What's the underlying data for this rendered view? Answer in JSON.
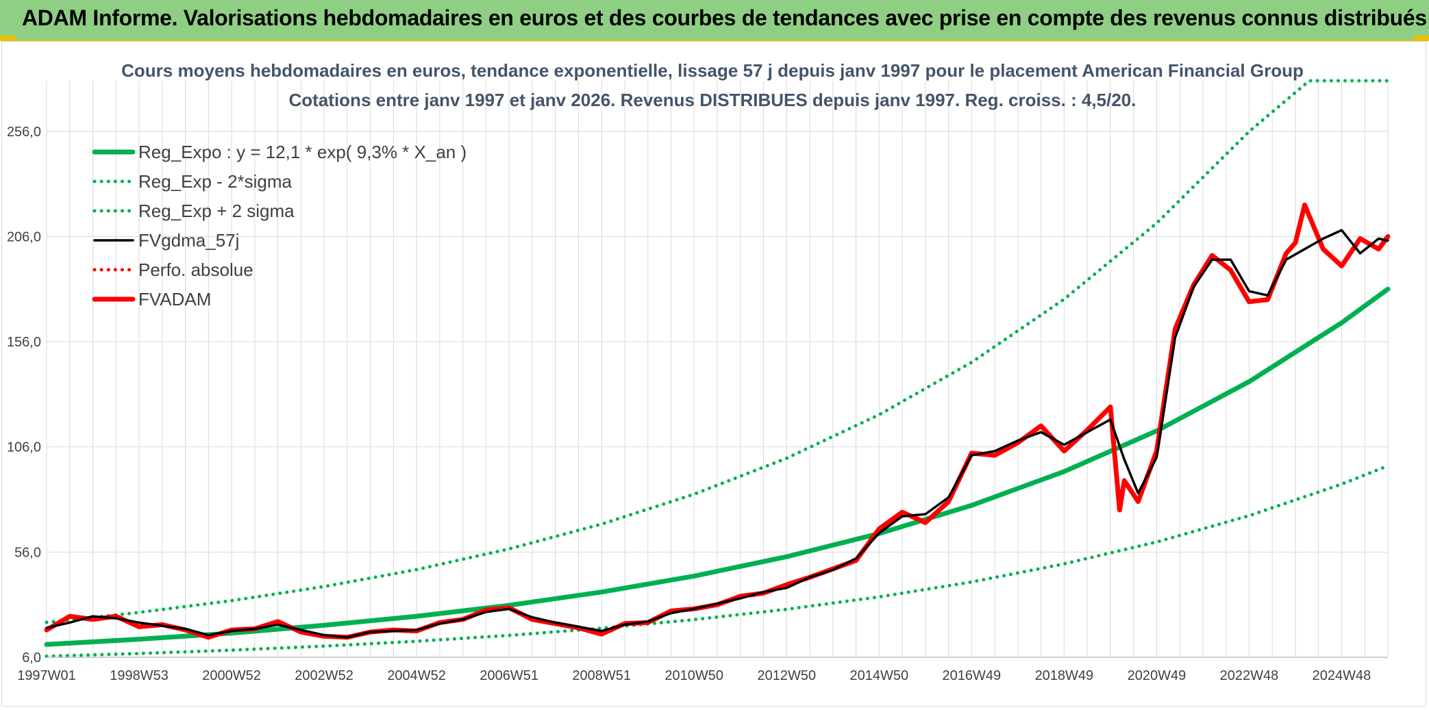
{
  "banner": {
    "text": "ADAM Informe. Valorisations hebdomadaires en euros et des courbes de tendances avec prise en compte des revenus connus distribués"
  },
  "colors": {
    "banner_bg": "#8fcf83",
    "regression": "#00b050",
    "smoothed": "#000000",
    "price": "#ff0000",
    "grid": "#d9d9d9"
  },
  "chart_data": {
    "type": "line",
    "title": "Cours moyens hebdomadaires en euros, tendance exponentielle, lissage 57 j depuis janv 1997 pour le placement American Financial Group",
    "subtitle": "Cotations entre janv 1997 et janv 2026. Revenus DISTRIBUES depuis janv 1997. Reg. croiss. : 4,5/20.",
    "xlabel": "",
    "ylabel": "",
    "x_range": [
      1997.0,
      2026.0
    ],
    "ylim": [
      6,
      280
    ],
    "y_ticks": [
      "6,0",
      "56,0",
      "106,0",
      "156,0",
      "206,0",
      "256,0"
    ],
    "y_tick_values": [
      6,
      56,
      106,
      156,
      206,
      256
    ],
    "x_ticks": [
      "1997W01",
      "1998W53",
      "2000W52",
      "2002W52",
      "2004W52",
      "2006W51",
      "2008W51",
      "2010W50",
      "2012W50",
      "2014W50",
      "2016W49",
      "2018W49",
      "2020W49",
      "2022W48",
      "2024W48"
    ],
    "x_tick_values": [
      1997.0,
      1999.0,
      2001.0,
      2003.0,
      2005.0,
      2007.0,
      2009.0,
      2011.0,
      2013.0,
      2015.0,
      2017.0,
      2019.0,
      2021.0,
      2023.0,
      2025.0
    ],
    "grid": true,
    "legend_position": "top-left",
    "legend": [
      {
        "label": "Reg_Expo : y = 12,1 * exp( 9,3% *  X_an )",
        "color": "#00b050",
        "style": "solid-thick"
      },
      {
        "label": "Reg_Exp - 2*sigma",
        "color": "#00b050",
        "style": "dotted"
      },
      {
        "label": "Reg_Exp + 2 sigma",
        "color": "#00b050",
        "style": "dotted"
      },
      {
        "label": "FVgdma_57j",
        "color": "#000000",
        "style": "solid"
      },
      {
        "label": "Perfo. absolue",
        "color": "#ff0000",
        "style": "dotted"
      },
      {
        "label": "FVADAM",
        "color": "#ff0000",
        "style": "solid-thick"
      }
    ],
    "series": [
      {
        "name": "Reg_Expo : y = 12,1 * exp( 9,3% *  X_an )",
        "x": [
          1997.0,
          1999.0,
          2001.0,
          2003.0,
          2005.0,
          2007.0,
          2009.0,
          2011.0,
          2013.0,
          2015.0,
          2017.0,
          2019.0,
          2021.0,
          2023.0,
          2025.0,
          2026.0
        ],
        "values": [
          12.1,
          14.6,
          17.5,
          21.2,
          25.5,
          30.7,
          37.0,
          44.6,
          53.8,
          64.8,
          78.2,
          94.3,
          113.6,
          137.0,
          165.0,
          181.0
        ]
      },
      {
        "name": "Reg_Exp - 2*sigma",
        "x": [
          1997.0,
          1999.0,
          2001.0,
          2003.0,
          2005.0,
          2007.0,
          2009.0,
          2011.0,
          2013.0,
          2015.0,
          2017.0,
          2019.0,
          2021.0,
          2023.0,
          2025.0,
          2026.0
        ],
        "values": [
          6.5,
          7.8,
          9.4,
          11.3,
          13.6,
          16.4,
          19.8,
          23.9,
          28.8,
          34.7,
          41.8,
          50.4,
          60.8,
          73.3,
          88.3,
          97.0
        ]
      },
      {
        "name": "Reg_Exp + 2 sigma",
        "x": [
          1997.0,
          1999.0,
          2001.0,
          2003.0,
          2005.0,
          2007.0,
          2009.0,
          2011.0,
          2013.0,
          2015.0,
          2017.0,
          2019.0,
          2021.0,
          2023.0,
          2024.3,
          2026.0
        ],
        "values": [
          22.6,
          27.3,
          32.9,
          39.6,
          47.7,
          57.5,
          69.3,
          83.5,
          100.6,
          121.3,
          146.2,
          176.2,
          212.3,
          255.9,
          280.0,
          280.0
        ]
      },
      {
        "name": "FVgdma_57j",
        "x": [
          1997.0,
          1997.5,
          1998.0,
          1998.5,
          1999.0,
          1999.5,
          2000.0,
          2000.5,
          2001.0,
          2001.5,
          2002.0,
          2002.5,
          2003.0,
          2003.5,
          2004.0,
          2004.5,
          2005.0,
          2005.5,
          2006.0,
          2006.5,
          2007.0,
          2007.5,
          2008.0,
          2008.5,
          2009.0,
          2009.5,
          2010.0,
          2010.5,
          2011.0,
          2011.5,
          2012.0,
          2012.5,
          2013.0,
          2013.5,
          2014.0,
          2014.5,
          2015.0,
          2015.5,
          2016.0,
          2016.5,
          2017.0,
          2017.5,
          2018.0,
          2018.5,
          2019.0,
          2019.5,
          2020.0,
          2020.3,
          2020.6,
          2021.0,
          2021.4,
          2021.8,
          2022.2,
          2022.6,
          2023.0,
          2023.4,
          2023.8,
          2024.2,
          2024.6,
          2025.0,
          2025.4,
          2025.8,
          2026.0
        ],
        "values": [
          20.0,
          22.5,
          25.5,
          24.5,
          22.5,
          21.0,
          19.5,
          16.5,
          18.5,
          19.5,
          21.5,
          19.0,
          16.5,
          15.5,
          18.0,
          18.5,
          19.0,
          22.0,
          24.0,
          27.5,
          29.0,
          25.0,
          22.5,
          20.5,
          18.5,
          21.5,
          23.0,
          27.0,
          29.0,
          31.5,
          34.0,
          37.0,
          39.0,
          44.0,
          47.5,
          53.0,
          65.0,
          73.0,
          74.0,
          82.0,
          102.0,
          104.0,
          109.0,
          113.0,
          107.0,
          113.0,
          119.0,
          100.0,
          84.0,
          101.0,
          158.0,
          182.0,
          195.0,
          195.0,
          180.0,
          178.0,
          195.0,
          200.0,
          205.0,
          209.0,
          198.0,
          205.0,
          204.0
        ]
      },
      {
        "name": "FVADAM",
        "x": [
          1997.0,
          1997.5,
          1998.0,
          1998.5,
          1999.0,
          1999.5,
          2000.0,
          2000.5,
          2001.0,
          2001.5,
          2002.0,
          2002.5,
          2003.0,
          2003.5,
          2004.0,
          2004.5,
          2005.0,
          2005.5,
          2006.0,
          2006.5,
          2007.0,
          2007.5,
          2008.0,
          2008.5,
          2009.0,
          2009.5,
          2010.0,
          2010.5,
          2011.0,
          2011.5,
          2012.0,
          2012.5,
          2013.0,
          2013.5,
          2014.0,
          2014.5,
          2015.0,
          2015.5,
          2016.0,
          2016.5,
          2017.0,
          2017.5,
          2018.0,
          2018.5,
          2019.0,
          2019.5,
          2020.0,
          2020.2,
          2020.3,
          2020.6,
          2021.0,
          2021.4,
          2021.8,
          2022.2,
          2022.6,
          2023.0,
          2023.4,
          2023.8,
          2024.0,
          2024.2,
          2024.6,
          2025.0,
          2025.4,
          2025.8,
          2026.0
        ],
        "values": [
          19.0,
          25.5,
          24.0,
          25.5,
          20.5,
          21.5,
          19.0,
          15.5,
          19.0,
          19.5,
          23.0,
          18.0,
          16.0,
          15.5,
          18.0,
          19.0,
          18.5,
          22.5,
          24.0,
          28.5,
          29.5,
          24.0,
          22.0,
          20.0,
          17.0,
          22.0,
          22.5,
          28.0,
          29.0,
          31.0,
          35.0,
          36.5,
          40.5,
          44.0,
          48.0,
          52.0,
          67.0,
          75.0,
          70.0,
          80.0,
          103.0,
          102.0,
          108.0,
          116.0,
          104.0,
          114.0,
          125.0,
          76.0,
          90.0,
          80.0,
          104.0,
          162.0,
          183.0,
          197.0,
          190.0,
          175.0,
          176.0,
          198.0,
          203.0,
          221.0,
          200.0,
          192.0,
          205.0,
          200.0,
          206.0
        ]
      }
    ]
  }
}
